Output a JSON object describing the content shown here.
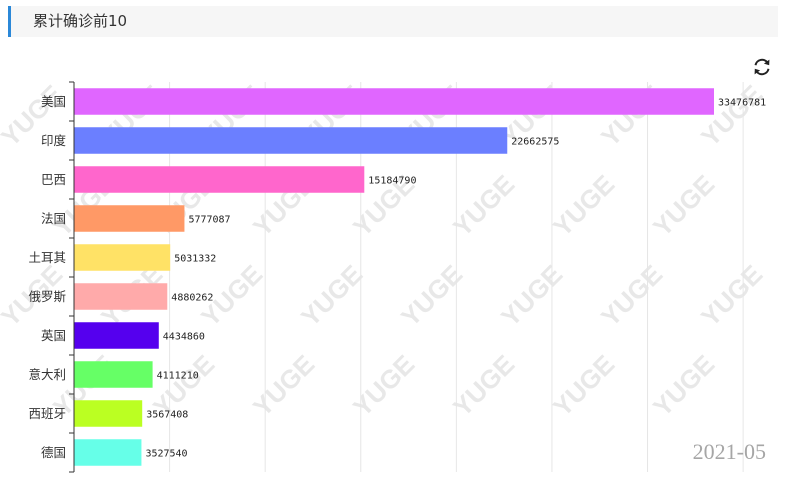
{
  "panel": {
    "title": "累计确诊前10"
  },
  "toolbar": {
    "refresh_icon": "refresh-icon"
  },
  "watermark": "YUGE",
  "chart_data": {
    "type": "bar",
    "orientation": "horizontal",
    "categories": [
      "美国",
      "印度",
      "巴西",
      "法国",
      "土耳其",
      "俄罗斯",
      "英国",
      "意大利",
      "西班牙",
      "德国"
    ],
    "values": [
      33476781,
      22662575,
      15184790,
      5777087,
      5031332,
      4880262,
      4434860,
      4111210,
      3567408,
      3527540
    ],
    "colors": [
      "#e066ff",
      "#6b7fff",
      "#ff66cc",
      "#ff9966",
      "#ffe266",
      "#ffaaaa",
      "#5500ee",
      "#66ff66",
      "#bbff22",
      "#66ffe8"
    ],
    "timeline_label": "2021-05",
    "xlim": [
      0,
      35000000
    ],
    "grid": true,
    "title": "",
    "xlabel": "",
    "ylabel": ""
  }
}
